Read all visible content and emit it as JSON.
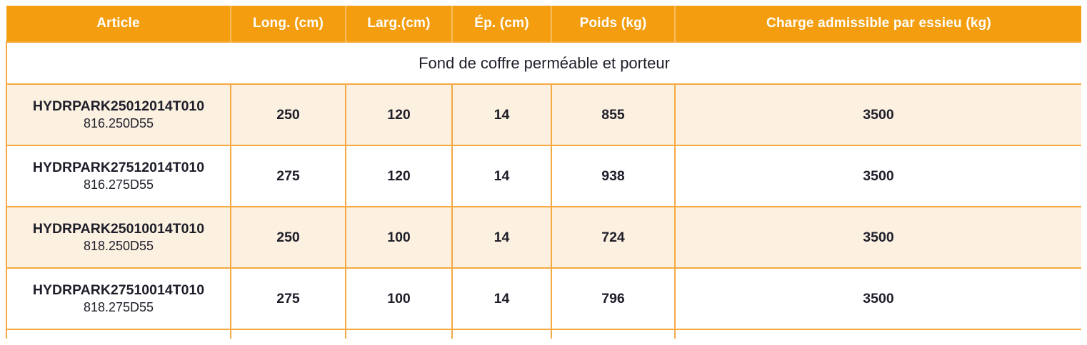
{
  "table": {
    "headers": [
      "Article",
      "Long. (cm)",
      "Larg.(cm)",
      "Ép. (cm)",
      "Poids (kg)",
      "Charge admissible par essieu (kg)"
    ],
    "section_title": "Fond de coffre perméable et porteur",
    "rows": [
      {
        "article_code": "HYDRPARK25012014T010",
        "article_ref": "816.250D55",
        "long": "250",
        "larg": "120",
        "ep": "14",
        "poids": "855",
        "charge": "3500"
      },
      {
        "article_code": "HYDRPARK27512014T010",
        "article_ref": "816.275D55",
        "long": "275",
        "larg": "120",
        "ep": "14",
        "poids": "938",
        "charge": "3500"
      },
      {
        "article_code": "HYDRPARK25010014T010",
        "article_ref": "818.250D55",
        "long": "250",
        "larg": "100",
        "ep": "14",
        "poids": "724",
        "charge": "3500"
      },
      {
        "article_code": "HYDRPARK27510014T010",
        "article_ref": "818.275D55",
        "long": "275",
        "larg": "100",
        "ep": "14",
        "poids": "796",
        "charge": "3500"
      }
    ],
    "colors": {
      "header_bg": "#F49E0F",
      "header_text": "#FFFFFF",
      "border": "#F5A941",
      "header_divider": "#F8BD5E",
      "row_alt_bg": "#FCF1E1",
      "text_dark": "#1E1E2A"
    }
  }
}
